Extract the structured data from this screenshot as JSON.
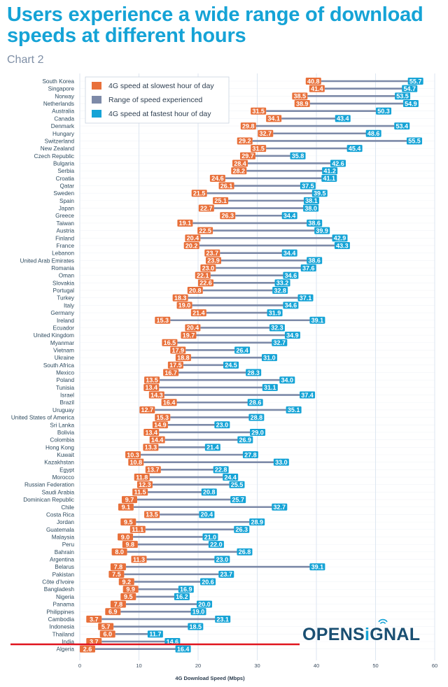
{
  "page": {
    "title": "Users experience a wide range of download speeds at different hours",
    "subtitle": "Chart 2",
    "logo": "OPENSIGNAL",
    "logo_left": "OPENS",
    "logo_i": "i",
    "logo_right": "GNAL"
  },
  "colors": {
    "slowest": "#e8703a",
    "range": "#7d8aa8",
    "fastest": "#15a3d6",
    "title": "#15a3d6",
    "highlight_line": "#e0141e"
  },
  "chart_data": {
    "type": "range-dumbbell",
    "title": "Users experience a wide range of download speeds at different hours",
    "subtitle": "Chart 2",
    "xlabel": "4G Download Speed (Mbps)",
    "ylabel": "",
    "xlim": [
      0,
      60
    ],
    "xticks": [
      0,
      10,
      20,
      30,
      40,
      50,
      60
    ],
    "grid": true,
    "legend_position": "top-left",
    "legend": [
      {
        "key": "slowest",
        "label": "4G speed at slowest hour of day"
      },
      {
        "key": "range",
        "label": "Range of speed experienced"
      },
      {
        "key": "fastest",
        "label": "4G speed at fastest hour of day"
      }
    ],
    "highlight_marker": "horizontal red line between Thailand and India",
    "categories": [
      "South Korea",
      "Singapore",
      "Norway",
      "Netherlands",
      "Australia",
      "Canada",
      "Denmark",
      "Hungary",
      "Switzerland",
      "New Zealand",
      "Czech Republic",
      "Bulgaria",
      "Serbia",
      "Croatia",
      "Qatar",
      "Sweden",
      "Spain",
      "Japan",
      "Greece",
      "Taiwan",
      "Austria",
      "Finland",
      "France",
      "Lebanon",
      "United Arab Emirates",
      "Romania",
      "Oman",
      "Slovakia",
      "Portugal",
      "Turkey",
      "Italy",
      "Germany",
      "Ireland",
      "Ecuador",
      "United Kingdom",
      "Myanmar",
      "Vietnam",
      "Ukraine",
      "South Africa",
      "Mexico",
      "Poland",
      "Tunisia",
      "Israel",
      "Brazil",
      "Uruguay",
      "United States of America",
      "Sri Lanka",
      "Bolivia",
      "Colombia",
      "Hong Kong",
      "Kuwait",
      "Kazakhstan",
      "Egypt",
      "Morocco",
      "Russian Federation",
      "Saudi Arabia",
      "Dominican Republic",
      "Chile",
      "Costa Rica",
      "Jordan",
      "Guatemala",
      "Malaysia",
      "Peru",
      "Bahrain",
      "Argentina",
      "Belarus",
      "Pakistan",
      "Côte d'Ivoire",
      "Bangladesh",
      "Nigeria",
      "Panama",
      "Philippines",
      "Cambodia",
      "Indonesia",
      "Thailand",
      "India",
      "Algeria"
    ],
    "series": [
      {
        "name": "4G speed at slowest hour of day",
        "values": [
          40.8,
          41.4,
          38.5,
          38.9,
          31.5,
          34.1,
          29.8,
          32.7,
          29.2,
          31.5,
          29.7,
          28.4,
          28.2,
          24.6,
          26.1,
          21.5,
          25.1,
          22.7,
          26.3,
          19.1,
          22.5,
          20.4,
          20.2,
          23.7,
          23.9,
          23.0,
          22.1,
          22.6,
          20.8,
          18.3,
          19.0,
          21.4,
          15.3,
          20.4,
          19.7,
          16.5,
          17.9,
          18.8,
          17.5,
          16.7,
          13.5,
          13.4,
          14.3,
          16.4,
          12.7,
          15.3,
          14.9,
          13.4,
          14.4,
          13.3,
          10.3,
          10.8,
          13.7,
          11.8,
          12.3,
          11.5,
          9.7,
          9.1,
          13.5,
          9.5,
          11.1,
          9.0,
          9.8,
          8.0,
          11.3,
          7.8,
          7.5,
          9.2,
          9.9,
          9.5,
          7.8,
          6.9,
          3.7,
          5.7,
          6.0,
          3.7,
          2.6
        ]
      },
      {
        "name": "4G speed at fastest hour of day",
        "values": [
          55.7,
          54.7,
          53.5,
          54.9,
          50.3,
          43.4,
          53.4,
          48.6,
          55.5,
          45.4,
          35.8,
          42.6,
          41.2,
          41.1,
          37.5,
          39.5,
          38.1,
          38.0,
          34.4,
          38.6,
          39.9,
          42.9,
          43.3,
          34.4,
          38.6,
          37.6,
          34.6,
          33.2,
          32.8,
          37.1,
          34.6,
          31.9,
          39.1,
          32.3,
          34.9,
          32.7,
          26.4,
          31.0,
          24.5,
          28.3,
          34.0,
          31.1,
          37.4,
          28.6,
          35.1,
          28.8,
          23.0,
          29.0,
          26.9,
          21.4,
          27.8,
          33.0,
          22.8,
          24.4,
          25.5,
          20.8,
          25.7,
          32.7,
          20.4,
          28.9,
          26.3,
          21.0,
          22.0,
          26.8,
          23.0,
          39.1,
          23.7,
          20.6,
          16.9,
          16.2,
          20.0,
          19.0,
          23.1,
          18.5,
          11.7,
          14.6,
          16.4
        ]
      }
    ]
  }
}
